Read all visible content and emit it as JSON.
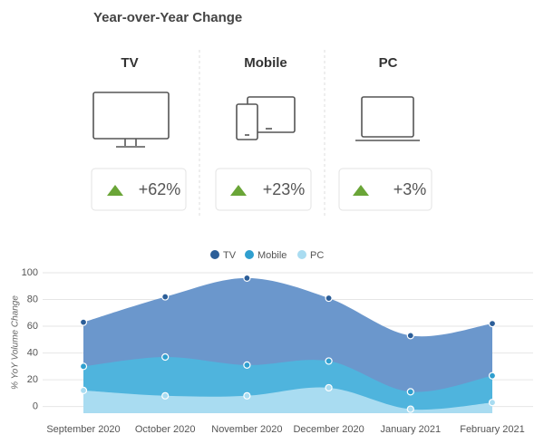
{
  "header": {
    "title": "Year-over-Year Change"
  },
  "cards": [
    {
      "label": "TV",
      "change": "+62%"
    },
    {
      "label": "Mobile",
      "change": "+23%"
    },
    {
      "label": "PC",
      "change": "+3%"
    }
  ],
  "chart_data": {
    "type": "area",
    "y_label": "% YoY Volume Change",
    "categories": [
      "September 2020",
      "October 2020",
      "November 2020",
      "December 2020",
      "January 2021",
      "February 2021"
    ],
    "series": [
      {
        "name": "TV",
        "color": "#6b97cc",
        "marker_color": "#2c5e98",
        "values": [
          63,
          82,
          96,
          81,
          53,
          62
        ]
      },
      {
        "name": "Mobile",
        "color": "#4fb4dd",
        "marker_color": "#2f9fcf",
        "values": [
          30,
          37,
          31,
          34,
          11,
          23
        ]
      },
      {
        "name": "PC",
        "color": "#a9dcf1",
        "marker_color": "#a9dcf1",
        "values": [
          12,
          8,
          8,
          14,
          -2,
          3
        ]
      }
    ],
    "ylim": [
      -5,
      100
    ],
    "yticks": [
      0,
      20,
      40,
      60,
      80,
      100
    ],
    "grid": true,
    "legend": "top"
  }
}
